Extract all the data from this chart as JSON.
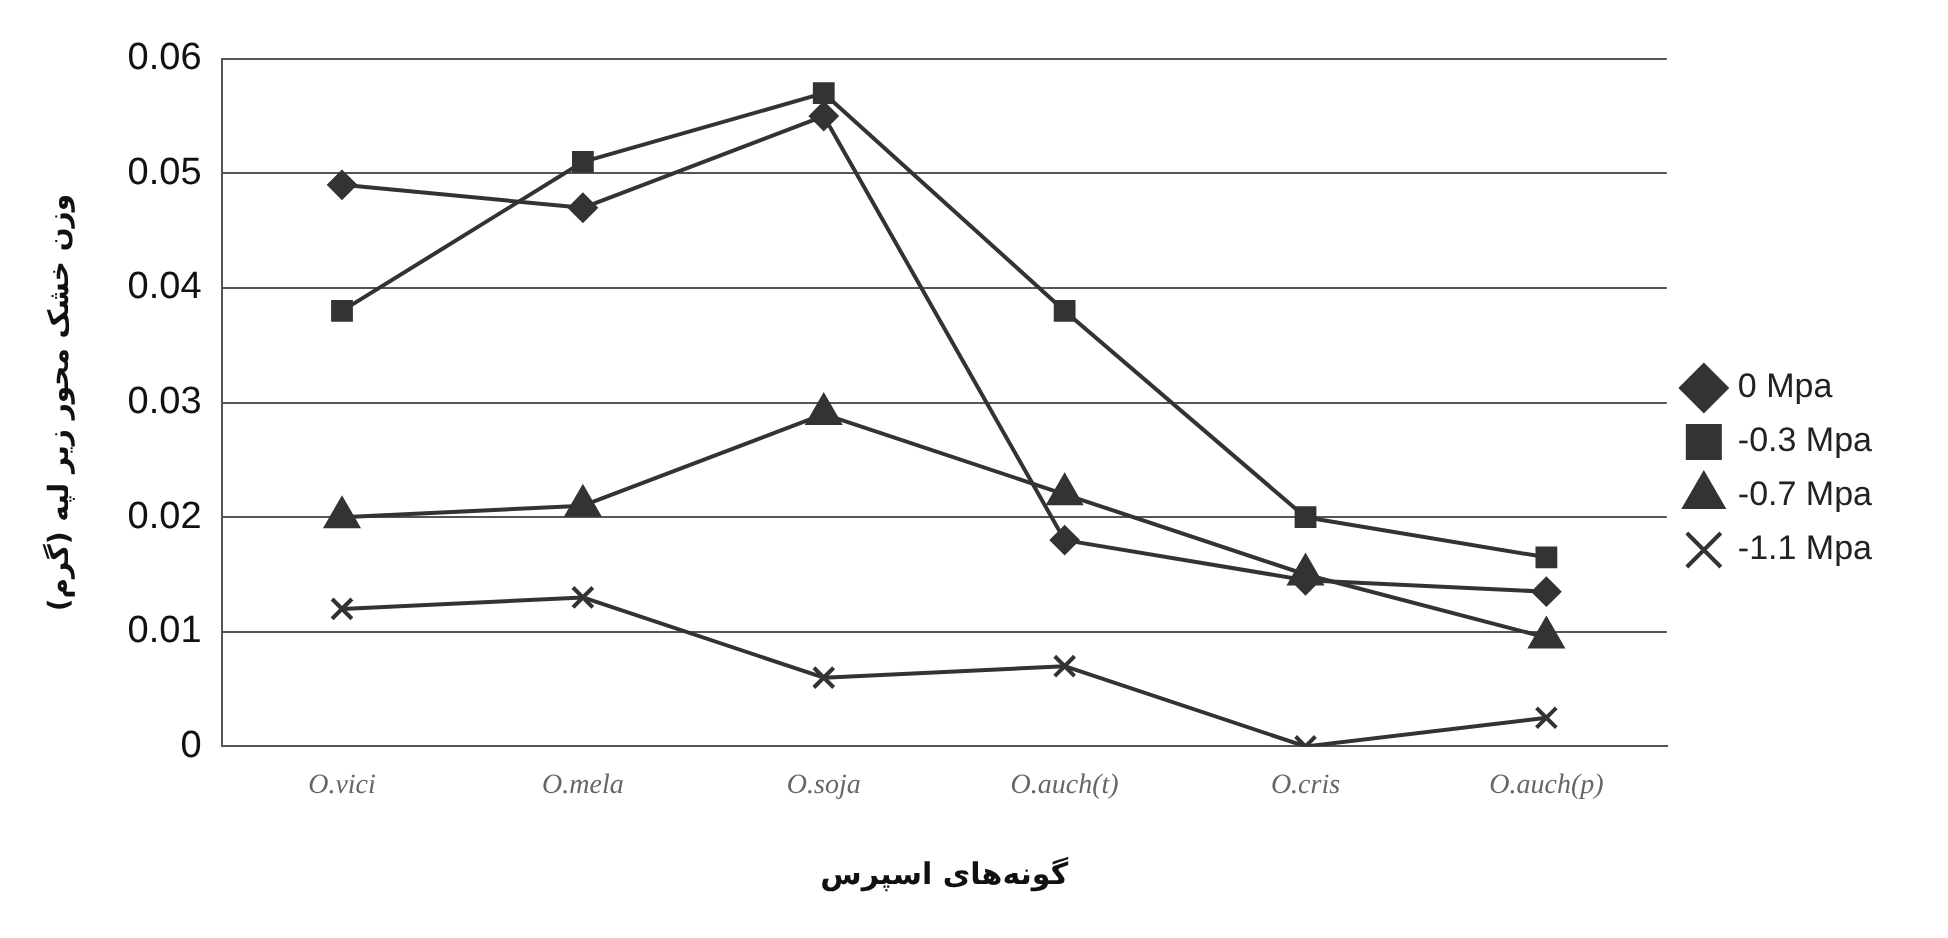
{
  "chart_data": {
    "type": "line",
    "xlabel": "گونه‌های اسپرس",
    "ylabel": "وزن خشک محور زیر لپه (گرم)",
    "categories": [
      "O.vici",
      "O.mela",
      "O.soja",
      "O.auch(t)",
      "O.cris",
      "O.auch(p)"
    ],
    "series": [
      {
        "name": "0 Mpa",
        "color": "#333333",
        "marker": "diamond",
        "values": [
          0.049,
          0.047,
          0.055,
          0.018,
          0.0145,
          0.0135
        ]
      },
      {
        "name": "-0.3 Mpa",
        "color": "#333333",
        "marker": "square",
        "values": [
          0.038,
          0.051,
          0.057,
          0.038,
          0.02,
          0.0165
        ]
      },
      {
        "name": "-0.7 Mpa",
        "color": "#333333",
        "marker": "triangle",
        "values": [
          0.02,
          0.021,
          0.029,
          0.022,
          0.015,
          0.0095
        ]
      },
      {
        "name": "-1.1 Mpa",
        "color": "#333333",
        "marker": "cross",
        "values": [
          0.012,
          0.013,
          0.006,
          0.007,
          0.0,
          0.0025
        ]
      }
    ],
    "ylim": [
      0,
      0.06
    ],
    "yticks": [
      0,
      0.01,
      0.02,
      0.03,
      0.04,
      0.05,
      0.06
    ],
    "grid": "y",
    "legend": "right",
    "line_style": "solid"
  }
}
